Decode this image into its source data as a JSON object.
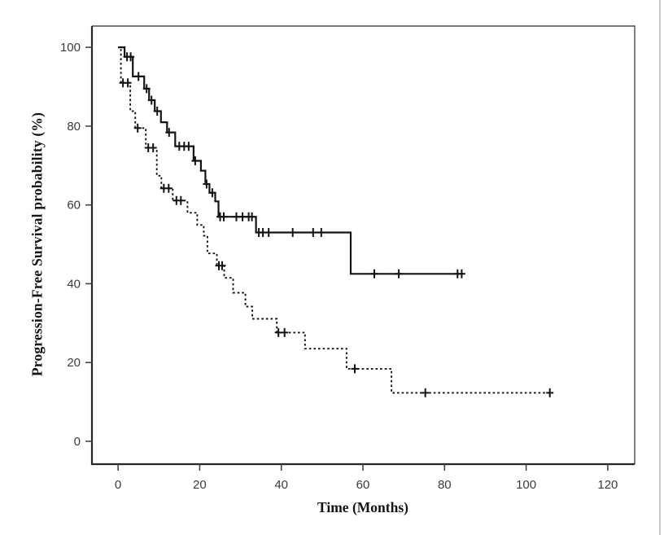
{
  "chart_data": {
    "type": "line",
    "subtype": "kaplan_meier_step",
    "title": "",
    "xlabel": "Time (Months)",
    "ylabel": "Progression-Free Survival probability (%)",
    "x_unit": "months",
    "y_unit": "percent",
    "grid": false,
    "legend": "none",
    "line_color": "#141414",
    "xticks": [
      0,
      20,
      40,
      60,
      80,
      100,
      120
    ],
    "yticks": [
      0,
      20,
      40,
      60,
      80,
      100
    ],
    "xlim": [
      -6.4,
      126.6
    ],
    "ylim": [
      -5.8,
      105.4
    ],
    "series": [
      {
        "name": "upper curve (solid)",
        "line_style": "solid",
        "steps": [
          [
            0,
            100
          ],
          [
            1.6,
            97.6
          ],
          [
            3.6,
            92.6
          ],
          [
            6.4,
            89.5
          ],
          [
            7.6,
            86.6
          ],
          [
            9,
            83.8
          ],
          [
            10.5,
            81
          ],
          [
            12,
            78.4
          ],
          [
            14,
            74.9
          ],
          [
            18.5,
            71.2
          ],
          [
            20.3,
            68.7
          ],
          [
            21.4,
            65.3
          ],
          [
            22.4,
            63.1
          ],
          [
            23.8,
            60.9
          ],
          [
            24.6,
            57
          ],
          [
            33.8,
            53
          ],
          [
            57,
            42.5
          ]
        ],
        "end_time": 84.5,
        "censor_marks": [
          [
            2.2,
            97.6
          ],
          [
            3.1,
            97.6
          ],
          [
            5,
            92.6
          ],
          [
            7,
            89.5
          ],
          [
            8.2,
            86.6
          ],
          [
            9.6,
            83.8
          ],
          [
            12.5,
            78.4
          ],
          [
            15,
            74.9
          ],
          [
            16.2,
            74.9
          ],
          [
            17.3,
            74.9
          ],
          [
            18.9,
            71.2
          ],
          [
            21.7,
            65.3
          ],
          [
            23.1,
            63.1
          ],
          [
            25,
            57
          ],
          [
            25.9,
            57
          ],
          [
            29,
            57
          ],
          [
            30.5,
            57
          ],
          [
            32,
            57
          ],
          [
            32.8,
            57
          ],
          [
            34.5,
            53
          ],
          [
            35.5,
            53
          ],
          [
            36.9,
            53
          ],
          [
            42.8,
            53
          ],
          [
            47.8,
            53
          ],
          [
            49.8,
            53
          ],
          [
            62.8,
            42.5
          ],
          [
            68.8,
            42.5
          ],
          [
            83.2,
            42.5
          ],
          [
            84.2,
            42.5
          ]
        ]
      },
      {
        "name": "lower curve (dashed)",
        "line_style": "dashed",
        "steps": [
          [
            0,
            100
          ],
          [
            0.7,
            91
          ],
          [
            3,
            83.8
          ],
          [
            4.2,
            79.5
          ],
          [
            6.8,
            74.5
          ],
          [
            9.5,
            67.4
          ],
          [
            10.6,
            64.2
          ],
          [
            13.4,
            61.1
          ],
          [
            17,
            58
          ],
          [
            19.4,
            54.9
          ],
          [
            21,
            52.2
          ],
          [
            21.9,
            47.7
          ],
          [
            24.2,
            44.6
          ],
          [
            26,
            41.5
          ],
          [
            28.2,
            37.7
          ],
          [
            31.2,
            34.2
          ],
          [
            32.9,
            31.1
          ],
          [
            38.9,
            27.6
          ],
          [
            45.8,
            23.5
          ],
          [
            56,
            18.4
          ],
          [
            67,
            12.3
          ]
        ],
        "end_time": 106.3,
        "censor_marks": [
          [
            1.2,
            91
          ],
          [
            2.4,
            91
          ],
          [
            4.8,
            79.5
          ],
          [
            7.4,
            74.5
          ],
          [
            8.6,
            74.5
          ],
          [
            11.2,
            64.2
          ],
          [
            12.4,
            64.2
          ],
          [
            14.3,
            61.1
          ],
          [
            15.4,
            61.1
          ],
          [
            24.7,
            44.6
          ],
          [
            25.5,
            44.6
          ],
          [
            39.3,
            27.6
          ],
          [
            40.8,
            27.6
          ],
          [
            58,
            18.4
          ],
          [
            75.3,
            12.3
          ],
          [
            105.8,
            12.3
          ]
        ]
      }
    ]
  }
}
